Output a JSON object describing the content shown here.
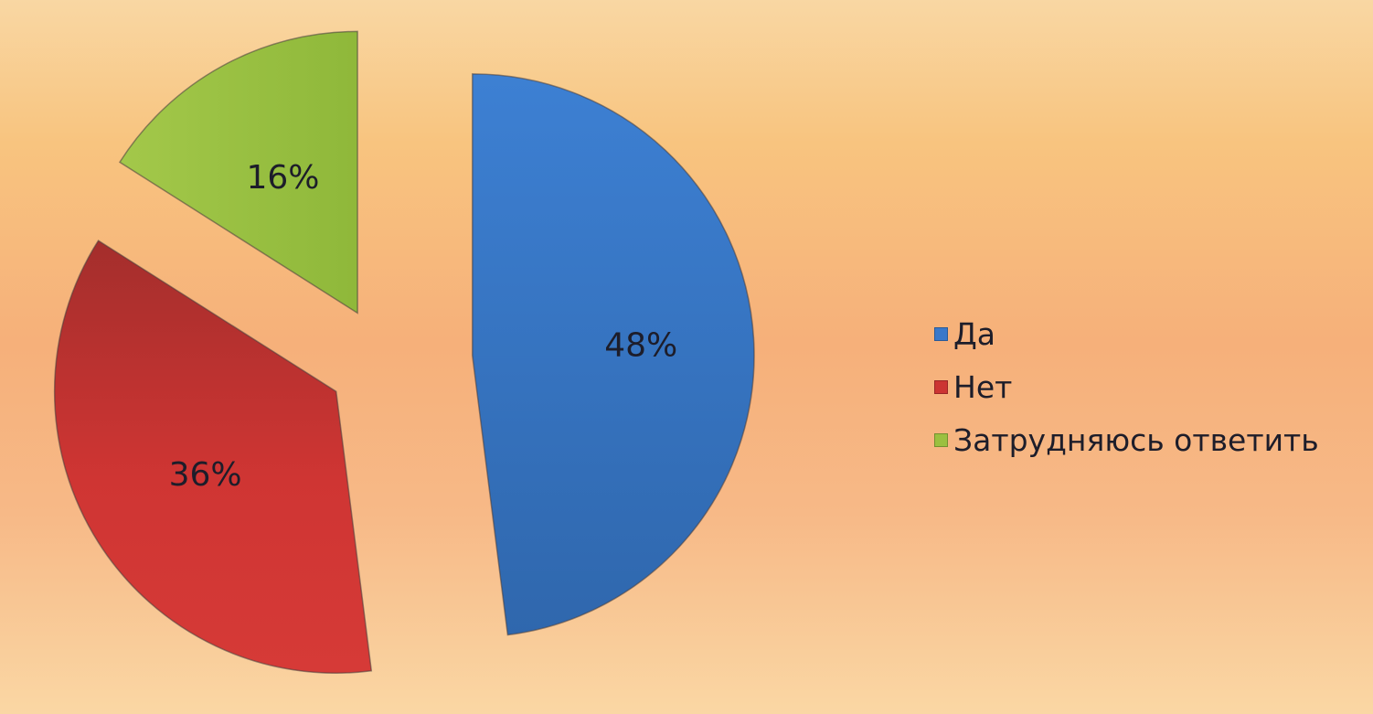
{
  "chart_data": {
    "type": "pie",
    "title": "",
    "categories": [
      "Да",
      "Нет",
      "Затрудняюсь ответить"
    ],
    "values": [
      48,
      36,
      16
    ],
    "value_labels": [
      "48%",
      "36%",
      "16%"
    ],
    "colors": [
      "#3a78c9",
      "#cc3533",
      "#9bc040"
    ],
    "exploded": true,
    "legend_position": "right"
  }
}
